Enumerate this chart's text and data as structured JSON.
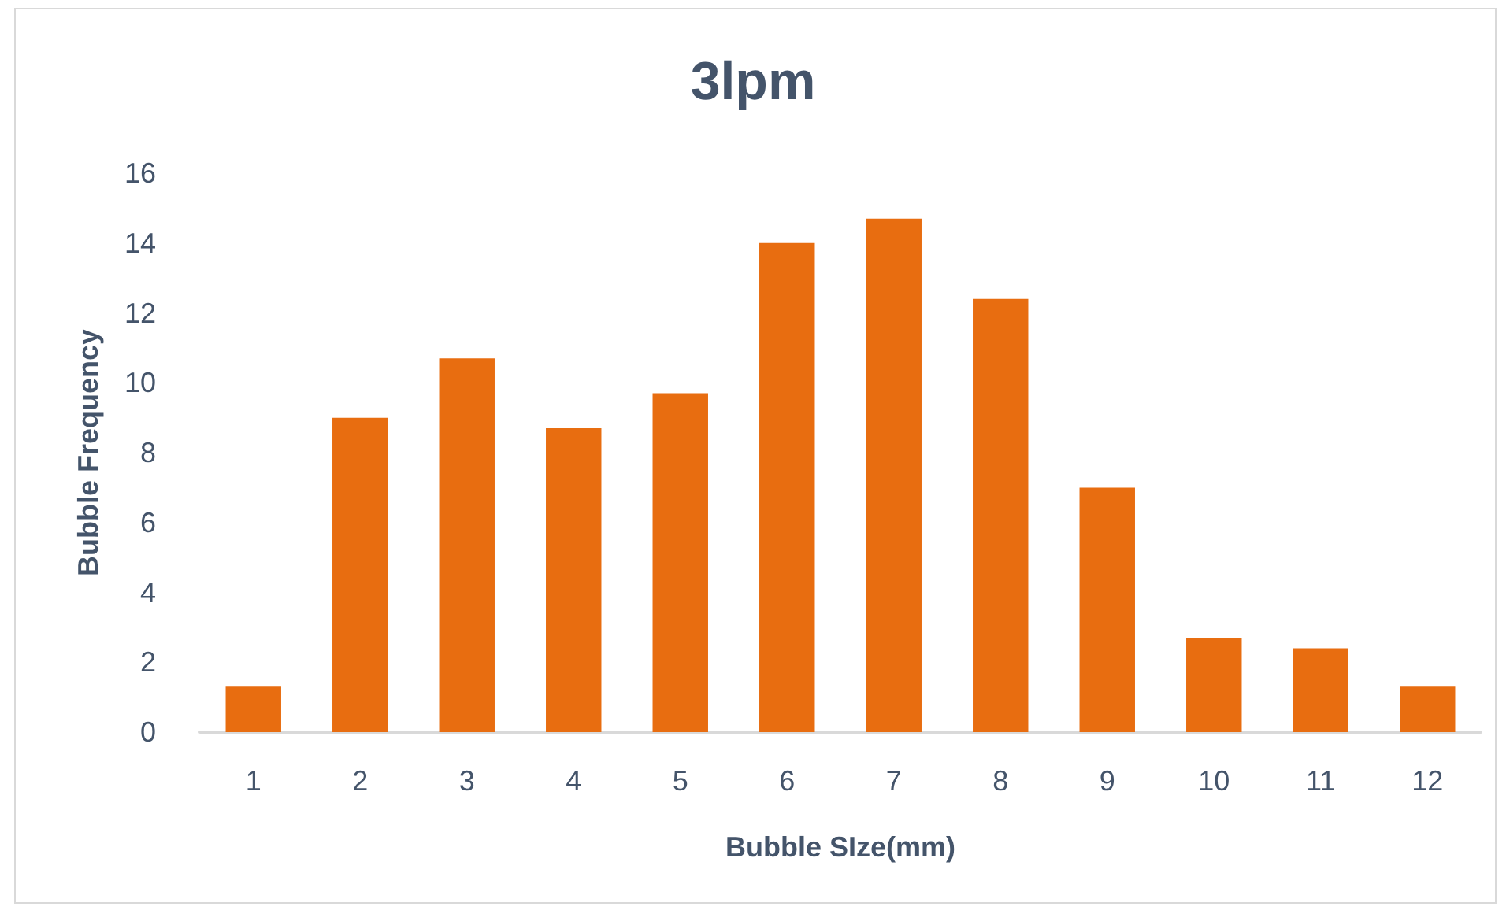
{
  "chart_data": {
    "type": "bar",
    "title": "3lpm",
    "xlabel": "Bubble SIze(mm)",
    "ylabel": "Bubble Frequency",
    "categories": [
      "1",
      "2",
      "3",
      "4",
      "5",
      "6",
      "7",
      "8",
      "9",
      "10",
      "11",
      "12"
    ],
    "values": [
      1.3,
      9.0,
      10.7,
      8.7,
      9.7,
      14.0,
      14.7,
      12.4,
      7.0,
      2.7,
      2.4,
      1.3
    ],
    "color": "#e86d10",
    "ylim": [
      0,
      16
    ],
    "yticks": [
      0,
      2,
      4,
      6,
      8,
      10,
      12,
      14,
      16
    ]
  }
}
